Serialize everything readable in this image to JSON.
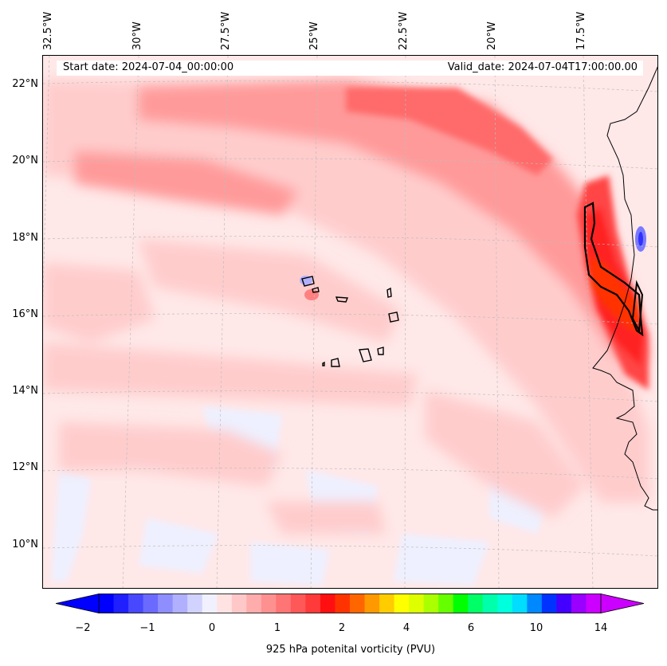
{
  "map": {
    "lon_labels": [
      "32.5°W",
      "30°W",
      "27.5°W",
      "25°W",
      "22.5°W",
      "20°W",
      "17.5°W"
    ],
    "lat_labels": [
      "22°N",
      "20°N",
      "18°N",
      "16°N",
      "14°N",
      "12°N",
      "10°N"
    ],
    "start_date": "Start date: 2024-07-04_00:00:00",
    "valid_date": "Valid_date: 2024-07-04T17:00:00.00",
    "variable": "925 hPa potential vorticity (PVU)"
  },
  "colorbar": {
    "label": "925 hPa potenital vorticity (PVU)",
    "tick_labels": [
      "−2",
      "−1",
      "0",
      "1",
      "2",
      "4",
      "6",
      "10",
      "14"
    ],
    "colors": [
      "#0000ff",
      "#2020ff",
      "#4848ff",
      "#6a6aff",
      "#8e8eff",
      "#b0b0ff",
      "#d2d2ff",
      "#f0f0ff",
      "#ffe2e2",
      "#ffc8c8",
      "#ffacac",
      "#ff9090",
      "#ff7474",
      "#ff5858",
      "#ff3a3a",
      "#ff1010",
      "#ff3300",
      "#ff6600",
      "#ff9900",
      "#ffcc00",
      "#ffff00",
      "#ddff00",
      "#aaff00",
      "#66ff00",
      "#00ff00",
      "#00ff66",
      "#00ffaa",
      "#00ffdd",
      "#00ddff",
      "#0088ff",
      "#0033ff",
      "#4400ff",
      "#9900ff",
      "#cc00ff"
    ],
    "extend": "both"
  }
}
